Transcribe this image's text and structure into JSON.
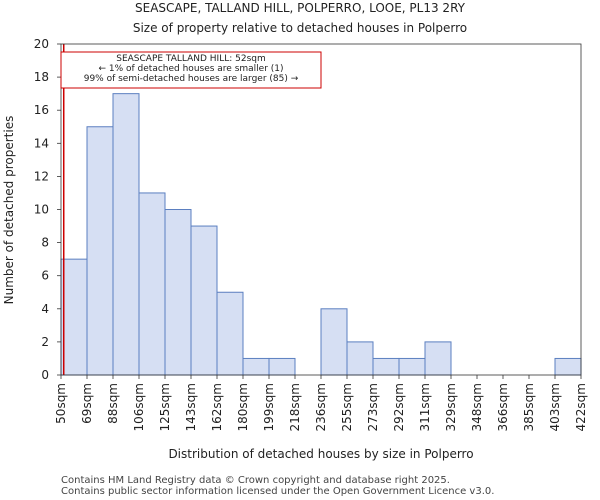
{
  "chart_data": {
    "type": "bar",
    "title": "SEASCAPE, TALLAND HILL, POLPERRO, LOOE, PL13 2RY",
    "subtitle": "Size of property relative to detached houses in Polperro",
    "xlabel": "Distribution of detached houses by size in Polperro",
    "ylabel": "Number of detached properties",
    "ylim": [
      0,
      20
    ],
    "yticks": [
      0,
      2,
      4,
      6,
      8,
      10,
      12,
      14,
      16,
      18,
      20
    ],
    "edges": [
      "50sqm",
      "69sqm",
      "88sqm",
      "106sqm",
      "125sqm",
      "143sqm",
      "162sqm",
      "180sqm",
      "199sqm",
      "218sqm",
      "236sqm",
      "255sqm",
      "273sqm",
      "292sqm",
      "311sqm",
      "329sqm",
      "348sqm",
      "366sqm",
      "385sqm",
      "403sqm",
      "422sqm"
    ],
    "values": [
      7,
      15,
      17,
      11,
      10,
      9,
      5,
      1,
      1,
      0,
      4,
      2,
      1,
      1,
      2,
      0,
      0,
      0,
      0,
      1
    ],
    "property_marker": {
      "value_sqm": 52,
      "label": "SEASCAPE TALLAND HILL: 52sqm"
    },
    "annotation": [
      "SEASCAPE TALLAND HILL: 52sqm",
      "← 1% of detached houses are smaller (1)",
      "99% of semi-detached houses are larger (85) →"
    ],
    "colors": {
      "bar_fill": "#d6dff3",
      "bar_stroke": "#5b7fc0",
      "marker": "#cc0000"
    }
  },
  "footer": {
    "line1": "Contains HM Land Registry data © Crown copyright and database right 2025.",
    "line2": "Contains public sector information licensed under the Open Government Licence v3.0."
  }
}
